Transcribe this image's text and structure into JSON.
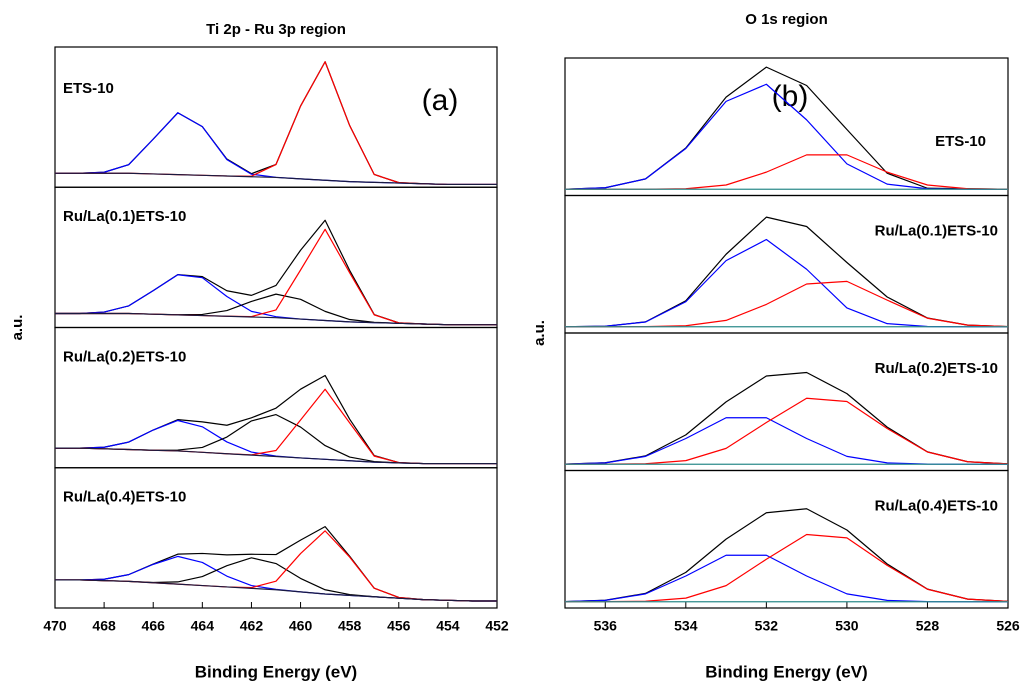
{
  "chart_data": [
    {
      "type": "line",
      "title": "Ti 2p - Ru 3p region",
      "xlabel": "Binding Energy (eV)",
      "ylabel": "a.u.",
      "panel_label": "(a)",
      "xlim": [
        470,
        452
      ],
      "xticks": [
        470,
        468,
        466,
        464,
        462,
        460,
        458,
        456,
        454,
        452
      ],
      "x": [
        470,
        469,
        468,
        467,
        466,
        465,
        464,
        463,
        462,
        461,
        460,
        459,
        458,
        457,
        456,
        455,
        454,
        453,
        452
      ],
      "panels": [
        {
          "label": "ETS-10",
          "ylim": [
            0,
            1
          ],
          "series": [
            {
              "color": "#000000",
              "values": [
                0.1,
                0.1,
                0.107,
                0.161,
                0.343,
                0.531,
                0.432,
                0.201,
                0.097,
                0.163,
                0.579,
                0.895,
                0.44,
                0.091,
                0.033,
                0.025,
                0.02,
                0.02,
                0.02
              ]
            },
            {
              "color": "#0000ff",
              "values": [
                0.1,
                0.1,
                0.107,
                0.161,
                0.343,
                0.531,
                0.432,
                0.197,
                0.093,
                0.071,
                0.06,
                0.05,
                0.04,
                0.035,
                0.03,
                0.025,
                0.02,
                0.02,
                0.02
              ]
            },
            {
              "color": "#ff0000",
              "values": [
                0.1,
                0.1,
                0.1,
                0.1,
                0.095,
                0.09,
                0.085,
                0.08,
                0.079,
                0.162,
                0.579,
                0.895,
                0.44,
                0.091,
                0.033,
                0.025,
                0.02,
                0.02,
                0.02
              ]
            },
            {
              "color": "#1a1a40",
              "values": [
                0.1,
                0.1,
                0.1,
                0.1,
                0.095,
                0.09,
                0.085,
                0.08,
                0.075,
                0.07,
                0.06,
                0.05,
                0.04,
                0.035,
                0.03,
                0.025,
                0.02,
                0.02,
                0.02
              ]
            }
          ]
        },
        {
          "label": "Ru/La(0.1)ETS-10",
          "ylim": [
            0,
            1
          ],
          "series": [
            {
              "color": "#000000",
              "values": [
                0.1,
                0.1,
                0.11,
                0.154,
                0.263,
                0.377,
                0.363,
                0.262,
                0.229,
                0.3,
                0.551,
                0.765,
                0.407,
                0.092,
                0.033,
                0.025,
                0.02,
                0.02,
                0.02
              ]
            },
            {
              "color": "#0000ff",
              "values": [
                0.1,
                0.1,
                0.11,
                0.154,
                0.263,
                0.376,
                0.355,
                0.221,
                0.115,
                0.077,
                0.06,
                0.05,
                0.04,
                0.035,
                0.03,
                0.025,
                0.02,
                0.02,
                0.02
              ]
            },
            {
              "color": "#000000",
              "values": [
                0.1,
                0.1,
                0.1,
                0.1,
                0.095,
                0.091,
                0.093,
                0.121,
                0.186,
                0.238,
                0.201,
                0.115,
                0.057,
                0.037,
                0.03,
                0.025,
                0.02,
                0.02,
                0.02
              ]
            },
            {
              "color": "#ff0000",
              "values": [
                0.1,
                0.1,
                0.1,
                0.1,
                0.095,
                0.09,
                0.085,
                0.08,
                0.078,
                0.125,
                0.41,
                0.7,
                0.39,
                0.09,
                0.033,
                0.025,
                0.02,
                0.02,
                0.02
              ]
            },
            {
              "color": "#1a1a40",
              "values": [
                0.1,
                0.1,
                0.1,
                0.1,
                0.095,
                0.09,
                0.085,
                0.08,
                0.075,
                0.07,
                0.06,
                0.05,
                0.04,
                0.035,
                0.03,
                0.025,
                0.02,
                0.02,
                0.02
              ]
            }
          ]
        },
        {
          "label": "Ru/La(0.2)ETS-10",
          "ylim": [
            0,
            1
          ],
          "series": [
            {
              "color": "#000000",
              "values": [
                0.14,
                0.14,
                0.146,
                0.183,
                0.269,
                0.343,
                0.327,
                0.303,
                0.356,
                0.425,
                0.56,
                0.658,
                0.346,
                0.087,
                0.037,
                0.03,
                0.03,
                0.03,
                0.03
              ]
            },
            {
              "color": "#0000ff",
              "values": [
                0.14,
                0.14,
                0.146,
                0.183,
                0.269,
                0.337,
                0.292,
                0.184,
                0.112,
                0.083,
                0.07,
                0.06,
                0.05,
                0.04,
                0.035,
                0.03,
                0.03,
                0.03,
                0.03
              ]
            },
            {
              "color": "#000000",
              "values": [
                0.14,
                0.14,
                0.135,
                0.13,
                0.125,
                0.126,
                0.145,
                0.219,
                0.334,
                0.379,
                0.29,
                0.158,
                0.076,
                0.044,
                0.035,
                0.03,
                0.03,
                0.03,
                0.03
              ]
            },
            {
              "color": "#ff0000",
              "values": [
                0.14,
                0.14,
                0.135,
                0.13,
                0.125,
                0.12,
                0.11,
                0.1,
                0.092,
                0.123,
                0.34,
                0.56,
                0.32,
                0.083,
                0.037,
                0.03,
                0.03,
                0.03,
                0.03
              ]
            },
            {
              "color": "#1a1a40",
              "values": [
                0.14,
                0.14,
                0.135,
                0.13,
                0.125,
                0.12,
                0.11,
                0.1,
                0.09,
                0.08,
                0.07,
                0.06,
                0.05,
                0.04,
                0.035,
                0.03,
                0.03,
                0.03,
                0.03
              ]
            }
          ]
        },
        {
          "label": "Ru/La(0.4)ETS-10",
          "ylim": [
            0,
            1
          ],
          "series": [
            {
              "color": "#000000",
              "values": [
                0.2,
                0.2,
                0.205,
                0.238,
                0.313,
                0.384,
                0.389,
                0.379,
                0.383,
                0.381,
                0.484,
                0.58,
                0.369,
                0.141,
                0.075,
                0.06,
                0.055,
                0.05,
                0.05
              ]
            },
            {
              "color": "#0000ff",
              "values": [
                0.2,
                0.2,
                0.205,
                0.238,
                0.311,
                0.368,
                0.325,
                0.227,
                0.16,
                0.133,
                0.115,
                0.1,
                0.09,
                0.08,
                0.07,
                0.06,
                0.055,
                0.05,
                0.05
              ]
            },
            {
              "color": "#000000",
              "values": [
                0.2,
                0.2,
                0.195,
                0.19,
                0.182,
                0.186,
                0.224,
                0.302,
                0.358,
                0.317,
                0.211,
                0.13,
                0.096,
                0.08,
                0.07,
                0.06,
                0.055,
                0.05,
                0.05
              ]
            },
            {
              "color": "#ff0000",
              "values": [
                0.2,
                0.2,
                0.195,
                0.19,
                0.18,
                0.17,
                0.16,
                0.15,
                0.145,
                0.191,
                0.388,
                0.55,
                0.363,
                0.141,
                0.075,
                0.06,
                0.055,
                0.05,
                0.05
              ]
            },
            {
              "color": "#1a1a40",
              "values": [
                0.2,
                0.2,
                0.195,
                0.19,
                0.18,
                0.17,
                0.16,
                0.15,
                0.14,
                0.13,
                0.115,
                0.1,
                0.09,
                0.08,
                0.07,
                0.06,
                0.055,
                0.05,
                0.05
              ]
            }
          ]
        }
      ]
    },
    {
      "type": "line",
      "title": "O 1s region",
      "xlabel": "Binding Energy (eV)",
      "ylabel": "a.u.",
      "panel_label": "(b)",
      "xlim": [
        537,
        526
      ],
      "xticks": [
        536,
        534,
        532,
        530,
        528,
        526
      ],
      "x": [
        537,
        536,
        535,
        534,
        533,
        532,
        531,
        530,
        529,
        528,
        527,
        526
      ],
      "panels": [
        {
          "label": "ETS-10",
          "ylim": [
            0,
            1.1
          ],
          "series": [
            {
              "color": "#000000",
              "values": [
                0.05,
                0.062,
                0.133,
                0.38,
                0.787,
                1.027,
                0.88,
                0.528,
                0.178,
                0.058,
                0.054,
                0.05
              ]
            },
            {
              "color": "#0000ff",
              "values": [
                0.05,
                0.062,
                0.133,
                0.376,
                0.753,
                0.89,
                0.605,
                0.253,
                0.091,
                0.054,
                0.05,
                0.05
              ]
            },
            {
              "color": "#ff0000",
              "values": [
                0.05,
                0.05,
                0.05,
                0.054,
                0.084,
                0.187,
                0.325,
                0.325,
                0.187,
                0.084,
                0.054,
                0.05
              ]
            },
            {
              "color": "#2e8b8b",
              "values": [
                0.05,
                0.05,
                0.05,
                0.05,
                0.05,
                0.05,
                0.05,
                0.05,
                0.05,
                0.05,
                0.05,
                0.05
              ]
            }
          ]
        },
        {
          "label": "Ru/La(0.1)ETS-10",
          "ylim": [
            0,
            1.1
          ],
          "series": [
            {
              "color": "#000000",
              "values": [
                0.05,
                0.054,
                0.089,
                0.258,
                0.63,
                0.927,
                0.852,
                0.564,
                0.288,
                0.12,
                0.063,
                0.051
              ]
            },
            {
              "color": "#0000ff",
              "values": [
                0.05,
                0.054,
                0.088,
                0.25,
                0.579,
                0.748,
                0.51,
                0.201,
                0.075,
                0.052,
                0.05,
                0.05
              ]
            },
            {
              "color": "#ff0000",
              "values": [
                0.05,
                0.05,
                0.051,
                0.058,
                0.101,
                0.229,
                0.392,
                0.413,
                0.263,
                0.118,
                0.063,
                0.051
              ]
            },
            {
              "color": "#2e8b8b",
              "values": [
                0.05,
                0.05,
                0.05,
                0.05,
                0.05,
                0.05,
                0.05,
                0.05,
                0.05,
                0.05,
                0.05,
                0.05
              ]
            }
          ]
        },
        {
          "label": "Ru/La(0.2)ETS-10",
          "ylim": [
            0,
            1.1
          ],
          "series": [
            {
              "color": "#000000",
              "values": [
                0.051,
                0.062,
                0.117,
                0.285,
                0.549,
                0.756,
                0.784,
                0.615,
                0.347,
                0.149,
                0.07,
                0.053
              ]
            },
            {
              "color": "#0000ff",
              "values": [
                0.051,
                0.061,
                0.113,
                0.256,
                0.422,
                0.422,
                0.256,
                0.113,
                0.061,
                0.051,
                0.05,
                0.05
              ]
            },
            {
              "color": "#ff0000",
              "values": [
                0.05,
                0.051,
                0.054,
                0.079,
                0.177,
                0.384,
                0.578,
                0.552,
                0.336,
                0.148,
                0.07,
                0.053
              ]
            },
            {
              "color": "#2e8b8b",
              "values": [
                0.05,
                0.05,
                0.05,
                0.05,
                0.05,
                0.05,
                0.05,
                0.05,
                0.05,
                0.05,
                0.05,
                0.05
              ]
            }
          ]
        },
        {
          "label": "Ru/La(0.4)ETS-10",
          "ylim": [
            0,
            1.1
          ],
          "series": [
            {
              "color": "#000000",
              "values": [
                0.051,
                0.062,
                0.117,
                0.285,
                0.551,
                0.762,
                0.794,
                0.624,
                0.352,
                0.151,
                0.071,
                0.053
              ]
            },
            {
              "color": "#0000ff",
              "values": [
                0.051,
                0.061,
                0.113,
                0.256,
                0.422,
                0.422,
                0.256,
                0.113,
                0.061,
                0.051,
                0.05,
                0.05
              ]
            },
            {
              "color": "#ff0000",
              "values": [
                0.05,
                0.051,
                0.054,
                0.079,
                0.179,
                0.39,
                0.588,
                0.561,
                0.341,
                0.15,
                0.071,
                0.053
              ]
            },
            {
              "color": "#2e8b8b",
              "values": [
                0.05,
                0.05,
                0.05,
                0.05,
                0.05,
                0.05,
                0.05,
                0.05,
                0.05,
                0.05,
                0.05,
                0.05
              ]
            }
          ]
        }
      ]
    }
  ]
}
